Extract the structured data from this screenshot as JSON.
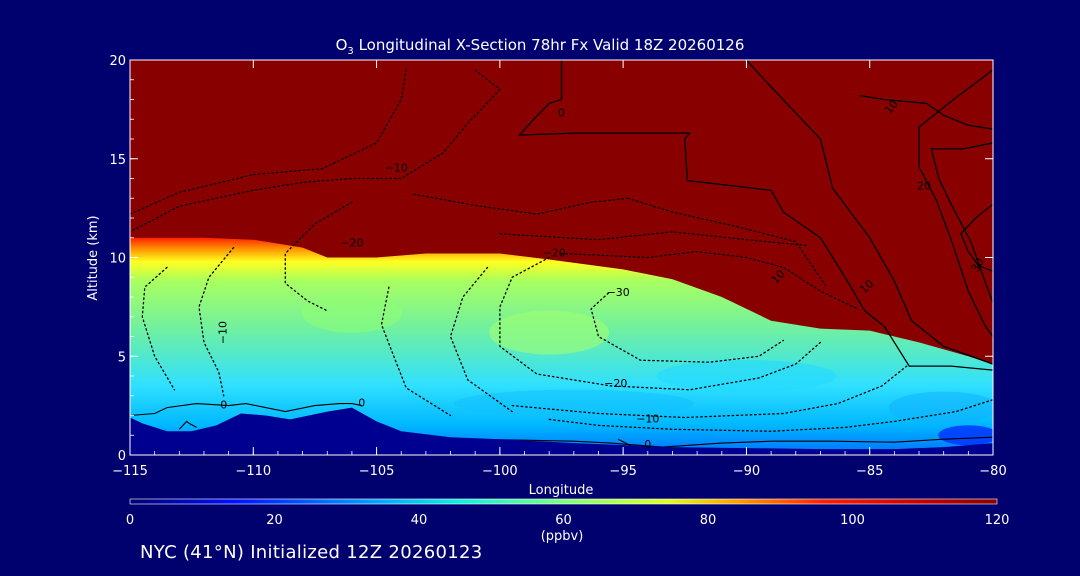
{
  "chart_data": {
    "type": "heatmap",
    "title_species": "O",
    "title_sub": "3",
    "title_rest": " Longitudinal X-Section 78hr  Fx Valid 18Z 20260126",
    "xlabel": "Longitude",
    "ylabel": "Altitude (km)",
    "xlim": [
      -115,
      -80
    ],
    "ylim": [
      0,
      20
    ],
    "xticks": [
      -115,
      -110,
      -105,
      -100,
      -95,
      -90,
      -85,
      -80
    ],
    "xtick_labels": [
      "−115",
      "−110",
      "−105",
      "−100",
      "−95",
      "−90",
      "−85",
      "−80"
    ],
    "yticks": [
      0,
      5,
      10,
      15,
      20
    ],
    "ytick_labels": [
      "0",
      "5",
      "10",
      "15",
      "20"
    ],
    "colorbar": {
      "min": 0,
      "max": 120,
      "ticks": [
        0,
        20,
        40,
        60,
        80,
        100,
        120
      ],
      "tick_labels": [
        "0",
        "20",
        "40",
        "60",
        "80",
        "100",
        "120"
      ],
      "unit": "(ppbv)"
    },
    "colors": {
      "background": "#00006e",
      "stratosphere": "#880000",
      "terrain": "#000090"
    },
    "tropopause_height_km": [
      [
        -115,
        11.0
      ],
      [
        -112,
        11.0
      ],
      [
        -110,
        10.9
      ],
      [
        -108,
        10.5
      ],
      [
        -107,
        10.0
      ],
      [
        -105,
        10.0
      ],
      [
        -103,
        10.2
      ],
      [
        -100,
        10.2
      ],
      [
        -98,
        9.9
      ],
      [
        -95,
        9.4
      ],
      [
        -93,
        8.9
      ],
      [
        -91,
        8.0
      ],
      [
        -89,
        6.8
      ],
      [
        -87,
        6.4
      ],
      [
        -85,
        6.3
      ],
      [
        -83,
        5.7
      ],
      [
        -81,
        5.0
      ],
      [
        -80,
        4.6
      ]
    ],
    "terrain_height_km": [
      [
        -115,
        1.9
      ],
      [
        -114.5,
        1.6
      ],
      [
        -113.5,
        1.2
      ],
      [
        -112.5,
        1.2
      ],
      [
        -111.5,
        1.5
      ],
      [
        -110.5,
        2.1
      ],
      [
        -109.5,
        2.0
      ],
      [
        -108.5,
        1.8
      ],
      [
        -107,
        2.2
      ],
      [
        -106,
        2.4
      ],
      [
        -105,
        1.7
      ],
      [
        -104,
        1.2
      ],
      [
        -102,
        0.9
      ],
      [
        -100,
        0.8
      ],
      [
        -97,
        0.6
      ],
      [
        -95,
        0.5
      ],
      [
        -93,
        0.4
      ],
      [
        -90,
        0.35
      ],
      [
        -87,
        0.3
      ],
      [
        -84,
        0.3
      ],
      [
        -82,
        0.4
      ],
      [
        -80,
        0.6
      ]
    ],
    "contour_labels": [
      "0",
      "0",
      "0",
      "0",
      "−10",
      "−10",
      "−10",
      "−20",
      "−20",
      "−20",
      "−30",
      "10",
      "10",
      "20",
      "30",
      "10"
    ],
    "footer": "NYC (41°N) Initialized 12Z 20260123"
  }
}
